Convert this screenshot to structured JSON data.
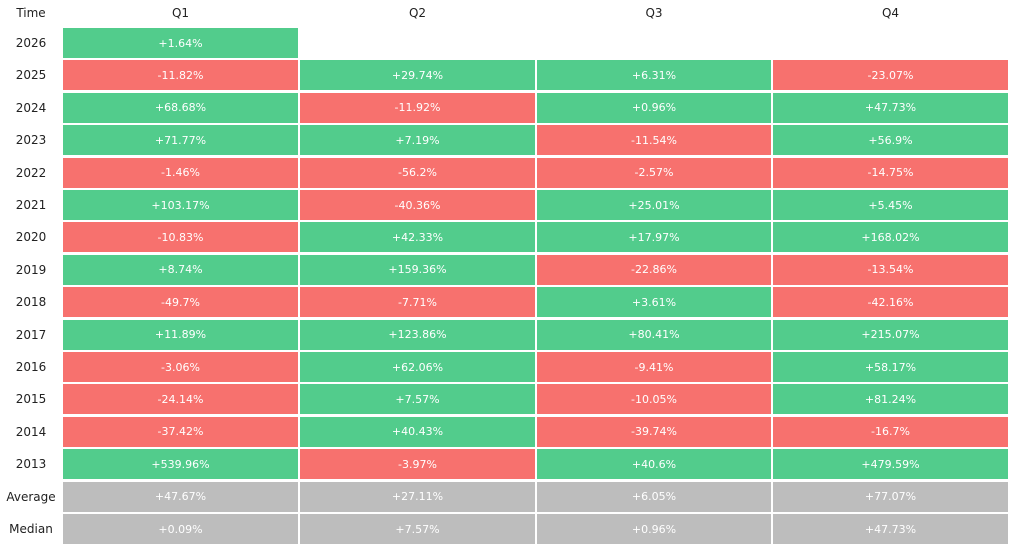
{
  "table": {
    "header": [
      "Time",
      "Q1",
      "Q2",
      "Q3",
      "Q4"
    ],
    "rows": [
      {
        "label": "2026",
        "cells": [
          "+1.64%"
        ]
      },
      {
        "label": "2025",
        "cells": [
          "-11.82%",
          "+29.74%",
          "+6.31%",
          "-23.07%"
        ]
      },
      {
        "label": "2024",
        "cells": [
          "+68.68%",
          "-11.92%",
          "+0.96%",
          "+47.73%"
        ]
      },
      {
        "label": "2023",
        "cells": [
          "+71.77%",
          "+7.19%",
          "-11.54%",
          "+56.9%"
        ]
      },
      {
        "label": "2022",
        "cells": [
          "-1.46%",
          "-56.2%",
          "-2.57%",
          "-14.75%"
        ]
      },
      {
        "label": "2021",
        "cells": [
          "+103.17%",
          "-40.36%",
          "+25.01%",
          "+5.45%"
        ]
      },
      {
        "label": "2020",
        "cells": [
          "-10.83%",
          "+42.33%",
          "+17.97%",
          "+168.02%"
        ]
      },
      {
        "label": "2019",
        "cells": [
          "+8.74%",
          "+159.36%",
          "-22.86%",
          "-13.54%"
        ]
      },
      {
        "label": "2018",
        "cells": [
          "-49.7%",
          "-7.71%",
          "+3.61%",
          "-42.16%"
        ]
      },
      {
        "label": "2017",
        "cells": [
          "+11.89%",
          "+123.86%",
          "+80.41%",
          "+215.07%"
        ]
      },
      {
        "label": "2016",
        "cells": [
          "-3.06%",
          "+62.06%",
          "-9.41%",
          "+58.17%"
        ]
      },
      {
        "label": "2015",
        "cells": [
          "-24.14%",
          "+7.57%",
          "-10.05%",
          "+81.24%"
        ]
      },
      {
        "label": "2014",
        "cells": [
          "-37.42%",
          "+40.43%",
          "-39.74%",
          "-16.7%"
        ]
      },
      {
        "label": "2013",
        "cells": [
          "+539.96%",
          "-3.97%",
          "+40.6%",
          "+479.59%"
        ]
      }
    ],
    "summary": [
      {
        "label": "Average",
        "cells": [
          "+47.67%",
          "+27.11%",
          "+6.05%",
          "+77.07%"
        ]
      },
      {
        "label": "Median",
        "cells": [
          "+0.09%",
          "+7.57%",
          "+0.96%",
          "+47.73%"
        ]
      }
    ],
    "colors": {
      "positive": "#52cc8c",
      "negative": "#f7716e",
      "summary": "#bdbdbd"
    }
  }
}
